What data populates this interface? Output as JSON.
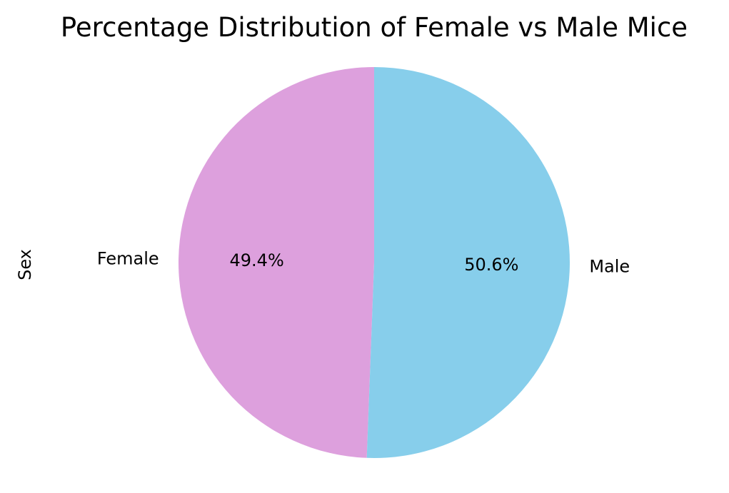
{
  "chart_data": {
    "type": "pie",
    "title": "Percentage Distribution of Female vs Male Mice",
    "ylabel": "Sex",
    "categories": [
      "Female",
      "Male"
    ],
    "values": [
      49.4,
      50.6
    ],
    "percent_labels": [
      "49.4%",
      "50.6%"
    ],
    "colors": [
      "#dda0dd",
      "#87ceeb"
    ],
    "start_angle_deg": 90,
    "direction": "counterclockwise",
    "legend": "none"
  }
}
